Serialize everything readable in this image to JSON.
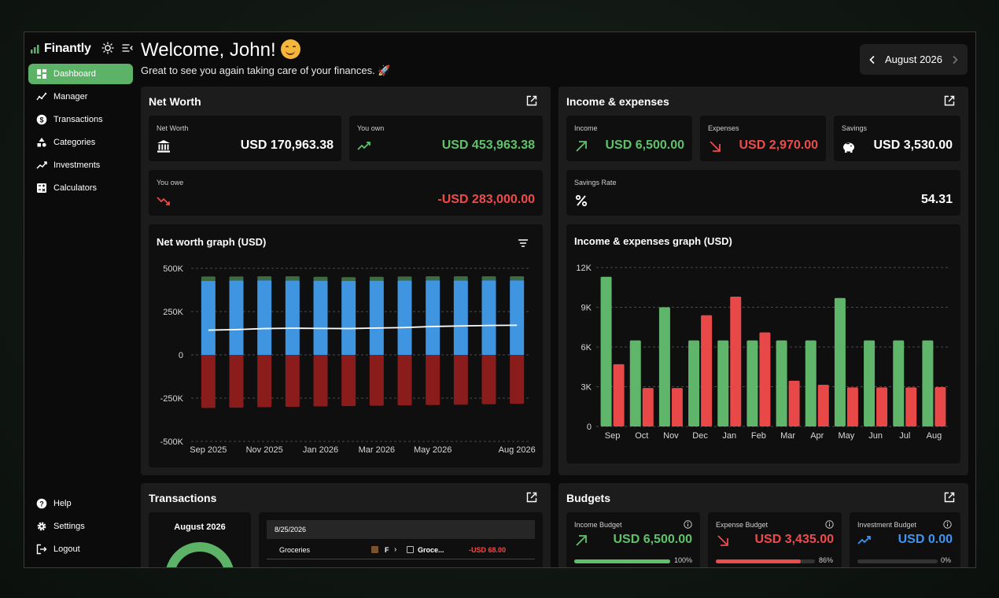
{
  "app": {
    "name": "Finantly",
    "welcome": "Welcome, John!",
    "subtitle": "Great to see you again taking care of your finances. 🚀",
    "month": "August 2026"
  },
  "sidebar": {
    "items": [
      {
        "label": "Dashboard",
        "icon": "dashboard-icon",
        "active": true
      },
      {
        "label": "Manager",
        "icon": "manager-icon"
      },
      {
        "label": "Transactions",
        "icon": "dollar-icon"
      },
      {
        "label": "Categories",
        "icon": "categories-icon"
      },
      {
        "label": "Investments",
        "icon": "trend-icon"
      },
      {
        "label": "Calculators",
        "icon": "calculator-icon"
      }
    ],
    "bottom": [
      {
        "label": "Help",
        "icon": "help-icon"
      },
      {
        "label": "Settings",
        "icon": "gear-icon"
      },
      {
        "label": "Logout",
        "icon": "logout-icon"
      }
    ]
  },
  "net_worth": {
    "title": "Net Worth",
    "net_worth_label": "Net Worth",
    "net_worth_value": "USD 170,963.38",
    "own_label": "You own",
    "own_value": "USD 453,963.38",
    "owe_label": "You owe",
    "owe_value": "-USD 283,000.00",
    "graph_title": "Net worth graph (USD)"
  },
  "income_expenses": {
    "title": "Income & expenses",
    "income_label": "Income",
    "income_value": "USD 6,500.00",
    "expenses_label": "Expenses",
    "expenses_value": "USD 2,970.00",
    "savings_label": "Savings",
    "savings_value": "USD 3,530.00",
    "rate_label": "Savings Rate",
    "rate_value": "54.31",
    "graph_title": "Income & expenses graph (USD)"
  },
  "transactions": {
    "title": "Transactions",
    "month": "August 2026",
    "date": "8/25/2026",
    "row": {
      "name": "Groceries",
      "from": "F",
      "to": "Groce...",
      "amount": "-USD 68.00"
    }
  },
  "budgets": {
    "title": "Budgets",
    "items": [
      {
        "label": "Income Budget",
        "value": "USD 6,500.00",
        "pct": "100%",
        "fraction": 1.0
      },
      {
        "label": "Expense Budget",
        "value": "USD 3,435.00",
        "pct": "86%",
        "fraction": 0.86
      },
      {
        "label": "Investment Budget",
        "value": "USD 0.00",
        "pct": "0%",
        "fraction": 0.0
      }
    ]
  },
  "colors": {
    "accent": "#5cb367",
    "positive": "#5fc26b",
    "negative": "#ef4b4b",
    "asset_bar": "#3f95e0",
    "asset_cap": "#3e6b3f",
    "liability_bar": "#8a1c1c",
    "blue_text": "#3f95f0"
  },
  "chart_data": [
    {
      "type": "bar",
      "title": "Net worth graph (USD)",
      "categories": [
        "Sep 2025",
        "Oct 2025",
        "Nov 2025",
        "Dec 2025",
        "Jan 2026",
        "Feb 2026",
        "Mar 2026",
        "Apr 2026",
        "May 2026",
        "Jun 2026",
        "Jul 2026",
        "Aug 2026"
      ],
      "x_tick_labels": [
        "Sep 2025",
        "Nov 2025",
        "Jan 2026",
        "Mar 2026",
        "May 2026",
        "Aug 2026"
      ],
      "y_tick_labels": [
        "500K",
        "250K",
        "0",
        "-250K",
        "-500K"
      ],
      "ylim": [
        -500000,
        500000
      ],
      "series": [
        {
          "kind": "asset",
          "values": [
            428000,
            430000,
            431000,
            430000,
            429000,
            428000,
            429000,
            430000,
            431000,
            430000,
            431000,
            431000
          ]
        },
        {
          "kind": "asset_cap",
          "values": [
            25000,
            23000,
            23000,
            24000,
            22000,
            21000,
            22000,
            23000,
            23000,
            24000,
            23000,
            23000
          ]
        },
        {
          "kind": "liability",
          "values": [
            -307000,
            -305000,
            -302000,
            -300000,
            -298000,
            -296000,
            -294000,
            -292000,
            -290000,
            -288000,
            -285000,
            -283000
          ]
        },
        {
          "kind": "net_line",
          "values": [
            143000,
            146000,
            152000,
            154000,
            153000,
            152000,
            155000,
            158000,
            164000,
            167000,
            170000,
            171000
          ]
        }
      ],
      "grid": true
    },
    {
      "type": "bar",
      "title": "Income & expenses graph (USD)",
      "categories": [
        "Sep",
        "Oct",
        "Nov",
        "Dec",
        "Jan",
        "Feb",
        "Mar",
        "Apr",
        "May",
        "Jun",
        "Jul",
        "Aug"
      ],
      "y_tick_labels": [
        "12K",
        "9K",
        "6K",
        "3K",
        "0"
      ],
      "ylim": [
        0,
        12000
      ],
      "series": [
        {
          "kind": "income",
          "values": [
            11300,
            6500,
            9000,
            6500,
            6500,
            6500,
            6500,
            6500,
            9700,
            6500,
            6500,
            6500
          ]
        },
        {
          "kind": "expenses",
          "values": [
            4700,
            2900,
            2900,
            8400,
            9800,
            7100,
            3450,
            3150,
            2950,
            2950,
            2950,
            2970
          ]
        }
      ],
      "grid": true
    }
  ]
}
